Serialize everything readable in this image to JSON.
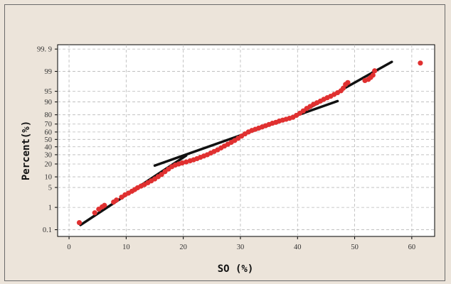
{
  "chart_data": {
    "type": "scatter",
    "title": "",
    "xlabel": "SO (%)",
    "ylabel": "Percent(%)",
    "xlim": [
      -2,
      64
    ],
    "ylim_prob": [
      0.1,
      99.9
    ],
    "y_scale": "normal-probability",
    "grid": true,
    "x_ticks": [
      0,
      10,
      20,
      30,
      40,
      50,
      60
    ],
    "y_ticks": [
      {
        "p": 0.1,
        "label": "0.1"
      },
      {
        "p": 1,
        "label": "1"
      },
      {
        "p": 5,
        "label": "5"
      },
      {
        "p": 10,
        "label": "10"
      },
      {
        "p": 20,
        "label": "20"
      },
      {
        "p": 30,
        "label": "30"
      },
      {
        "p": 40,
        "label": "40"
      },
      {
        "p": 50,
        "label": "50"
      },
      {
        "p": 60,
        "label": "60"
      },
      {
        "p": 70,
        "label": "70"
      },
      {
        "p": 80,
        "label": "80"
      },
      {
        "p": 90,
        "label": "90"
      },
      {
        "p": 95,
        "label": "95"
      },
      {
        "p": 99,
        "label": "99"
      },
      {
        "p": 99.9,
        "label": "99. 9"
      }
    ],
    "point_color": "#e03030",
    "line_color": "#111111",
    "series": [
      {
        "points": [
          [
            1.8,
            0.22
          ],
          [
            4.5,
            0.6
          ],
          [
            5.2,
            0.85
          ],
          [
            5.8,
            1.05
          ],
          [
            6.2,
            1.2
          ],
          [
            7.8,
            1.6
          ],
          [
            8.3,
            1.9
          ],
          [
            9.2,
            2.4
          ],
          [
            9.8,
            2.9
          ],
          [
            10.4,
            3.3
          ],
          [
            11.0,
            3.8
          ],
          [
            11.5,
            4.3
          ],
          [
            12.0,
            4.9
          ],
          [
            12.6,
            5.5
          ],
          [
            13.2,
            6.1
          ],
          [
            13.8,
            6.9
          ],
          [
            14.4,
            7.8
          ],
          [
            15.0,
            8.8
          ],
          [
            15.6,
            10.1
          ],
          [
            16.2,
            11.5
          ],
          [
            16.8,
            13.5
          ],
          [
            17.4,
            15.5
          ],
          [
            18.0,
            17.5
          ],
          [
            18.6,
            19.0
          ],
          [
            19.2,
            20.0
          ],
          [
            19.8,
            21.0
          ],
          [
            20.5,
            22.0
          ],
          [
            21.2,
            23.2
          ],
          [
            21.8,
            24.2
          ],
          [
            22.4,
            25.5
          ],
          [
            23.0,
            27.0
          ],
          [
            23.6,
            28.5
          ],
          [
            24.2,
            30.0
          ],
          [
            24.8,
            32.0
          ],
          [
            25.4,
            34.0
          ],
          [
            26.0,
            36.0
          ],
          [
            26.6,
            38.5
          ],
          [
            27.2,
            41.0
          ],
          [
            27.8,
            43.5
          ],
          [
            28.4,
            46.0
          ],
          [
            29.0,
            48.5
          ],
          [
            29.6,
            51.5
          ],
          [
            30.2,
            54.5
          ],
          [
            30.8,
            57.5
          ],
          [
            31.4,
            60.0
          ],
          [
            32.0,
            62.0
          ],
          [
            32.6,
            63.5
          ],
          [
            33.2,
            65.0
          ],
          [
            33.8,
            66.5
          ],
          [
            34.4,
            68.0
          ],
          [
            35.0,
            69.5
          ],
          [
            35.6,
            71.0
          ],
          [
            36.2,
            72.0
          ],
          [
            36.8,
            73.5
          ],
          [
            37.4,
            74.5
          ],
          [
            38.0,
            75.5
          ],
          [
            38.6,
            76.5
          ],
          [
            39.2,
            77.5
          ],
          [
            39.8,
            79.5
          ],
          [
            40.4,
            81.5
          ],
          [
            41.0,
            83.5
          ],
          [
            41.6,
            85.5
          ],
          [
            42.2,
            87.0
          ],
          [
            42.8,
            88.5
          ],
          [
            43.4,
            89.5
          ],
          [
            44.0,
            90.5
          ],
          [
            44.6,
            91.5
          ],
          [
            45.2,
            92.3
          ],
          [
            45.8,
            93.0
          ],
          [
            46.4,
            93.8
          ],
          [
            47.0,
            94.5
          ],
          [
            47.6,
            95.2
          ],
          [
            48.0,
            96.0
          ],
          [
            48.4,
            97.0
          ],
          [
            48.8,
            97.4
          ],
          [
            51.8,
            97.8
          ],
          [
            52.4,
            98.0
          ],
          [
            52.8,
            98.3
          ],
          [
            53.2,
            98.6
          ],
          [
            53.5,
            99.05
          ],
          [
            61.5,
            99.55
          ]
        ]
      }
    ],
    "fit_lines": [
      {
        "x": [
          2.0,
          20.5
        ],
        "p": [
          0.17,
          29.0
        ]
      },
      {
        "x": [
          15.0,
          47.0
        ],
        "p": [
          18.5,
          90.5
        ]
      },
      {
        "x": [
          38.5,
          56.5
        ],
        "p": [
          75.5,
          99.6
        ]
      }
    ]
  }
}
